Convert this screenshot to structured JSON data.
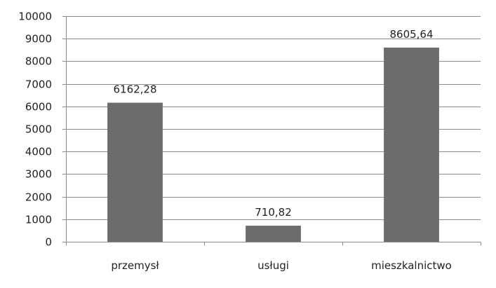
{
  "chart_data": {
    "type": "bar",
    "title": "",
    "xlabel": "",
    "ylabel": "",
    "categories": [
      "przemysł",
      "usługi",
      "mieszkalnictwo"
    ],
    "values": [
      6162.28,
      710.82,
      8605.64
    ],
    "data_labels": [
      "6162,28",
      "710,82",
      "8605,64"
    ],
    "ylim": [
      0,
      10000
    ],
    "yticks": [
      0,
      1000,
      2000,
      3000,
      4000,
      5000,
      6000,
      7000,
      8000,
      9000,
      10000
    ],
    "grid": true,
    "legend": "none",
    "bar_color": "#6d6b6b"
  }
}
